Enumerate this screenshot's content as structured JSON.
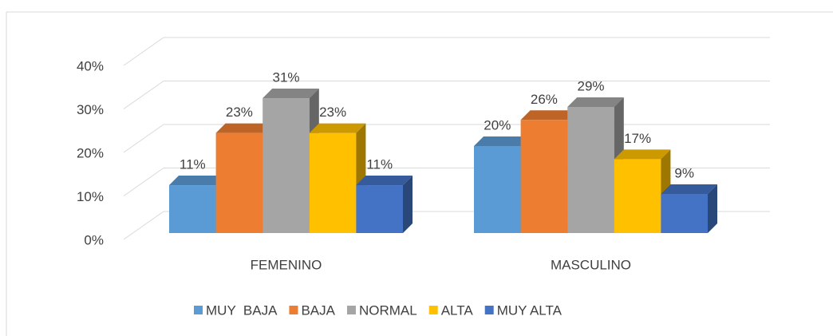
{
  "chart_data": {
    "type": "bar3d",
    "categories": [
      "FEMENINO",
      "MASCULINO"
    ],
    "series": [
      {
        "name": "MUY  BAJA",
        "color": "#5b9bd5",
        "values": [
          11,
          20
        ],
        "value_labels": [
          "11%",
          "20%"
        ]
      },
      {
        "name": "BAJA",
        "color": "#ed7d31",
        "values": [
          23,
          26
        ],
        "value_labels": [
          "23%",
          "26%"
        ]
      },
      {
        "name": "NORMAL",
        "color": "#a5a5a5",
        "values": [
          31,
          29
        ],
        "value_labels": [
          "31%",
          "29%"
        ]
      },
      {
        "name": "ALTA",
        "color": "#ffc000",
        "values": [
          23,
          17
        ],
        "value_labels": [
          "23%",
          "17%"
        ]
      },
      {
        "name": "MUY ALTA",
        "color": "#4472c4",
        "values": [
          11,
          9
        ],
        "value_labels": [
          "11%",
          "9%"
        ]
      }
    ],
    "ylim": [
      0,
      40
    ],
    "yticks": [
      {
        "value": 0,
        "label": "0%"
      },
      {
        "value": 10,
        "label": "10%"
      },
      {
        "value": 20,
        "label": "20%"
      },
      {
        "value": 30,
        "label": "30%"
      },
      {
        "value": 40,
        "label": "40%"
      }
    ],
    "grid": true,
    "legend": "bottom"
  }
}
